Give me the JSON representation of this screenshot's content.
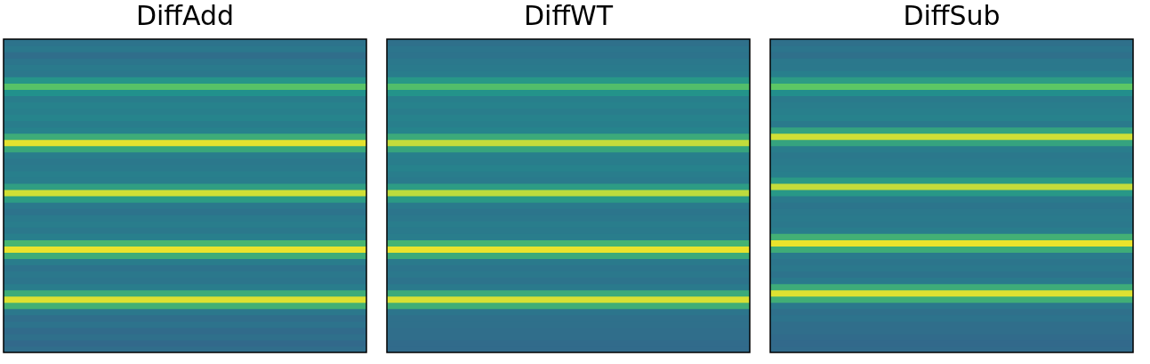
{
  "chart_data": [
    {
      "type": "heatmap",
      "title": "DiffAdd",
      "tick_labels": false,
      "color_range": [
        0,
        1
      ],
      "cells": [
        [
          0.38
        ],
        [
          0.4
        ],
        [
          0.36
        ],
        [
          0.39
        ],
        [
          0.41
        ],
        [
          0.4
        ],
        [
          0.52
        ],
        [
          0.72
        ],
        [
          0.5
        ],
        [
          0.42
        ],
        [
          0.44
        ],
        [
          0.43
        ],
        [
          0.45
        ],
        [
          0.42
        ],
        [
          0.44
        ],
        [
          0.62
        ],
        [
          0.96
        ],
        [
          0.6
        ],
        [
          0.42
        ],
        [
          0.4
        ],
        [
          0.41
        ],
        [
          0.43
        ],
        [
          0.42
        ],
        [
          0.56
        ],
        [
          0.93
        ],
        [
          0.55
        ],
        [
          0.4
        ],
        [
          0.38
        ],
        [
          0.41
        ],
        [
          0.42
        ],
        [
          0.4
        ],
        [
          0.43
        ],
        [
          0.66
        ],
        [
          0.97
        ],
        [
          0.62
        ],
        [
          0.42
        ],
        [
          0.38
        ],
        [
          0.4
        ],
        [
          0.39
        ],
        [
          0.42
        ],
        [
          0.62
        ],
        [
          0.95
        ],
        [
          0.64
        ],
        [
          0.4
        ],
        [
          0.36
        ],
        [
          0.38
        ],
        [
          0.35
        ],
        [
          0.37
        ],
        [
          0.34
        ],
        [
          0.36
        ]
      ]
    },
    {
      "type": "heatmap",
      "title": "DiffWT",
      "tick_labels": false,
      "color_range": [
        0,
        1
      ],
      "cells": [
        [
          0.37
        ],
        [
          0.39
        ],
        [
          0.38
        ],
        [
          0.4
        ],
        [
          0.41
        ],
        [
          0.42
        ],
        [
          0.53
        ],
        [
          0.7
        ],
        [
          0.51
        ],
        [
          0.43
        ],
        [
          0.44
        ],
        [
          0.42
        ],
        [
          0.44
        ],
        [
          0.43
        ],
        [
          0.45
        ],
        [
          0.61
        ],
        [
          0.91
        ],
        [
          0.59
        ],
        [
          0.43
        ],
        [
          0.42
        ],
        [
          0.44
        ],
        [
          0.42
        ],
        [
          0.41
        ],
        [
          0.55
        ],
        [
          0.9
        ],
        [
          0.54
        ],
        [
          0.41
        ],
        [
          0.39
        ],
        [
          0.4
        ],
        [
          0.42
        ],
        [
          0.41
        ],
        [
          0.42
        ],
        [
          0.65
        ],
        [
          0.97
        ],
        [
          0.61
        ],
        [
          0.41
        ],
        [
          0.39
        ],
        [
          0.4
        ],
        [
          0.38
        ],
        [
          0.41
        ],
        [
          0.61
        ],
        [
          0.94
        ],
        [
          0.63
        ],
        [
          0.39
        ],
        [
          0.37
        ],
        [
          0.37
        ],
        [
          0.36
        ],
        [
          0.36
        ],
        [
          0.35
        ],
        [
          0.35
        ]
      ]
    },
    {
      "type": "heatmap",
      "title": "DiffSub",
      "tick_labels": false,
      "color_range": [
        0,
        1
      ],
      "cells": [
        [
          0.37
        ],
        [
          0.39
        ],
        [
          0.37
        ],
        [
          0.4
        ],
        [
          0.4
        ],
        [
          0.43
        ],
        [
          0.55
        ],
        [
          0.74
        ],
        [
          0.49
        ],
        [
          0.41
        ],
        [
          0.42
        ],
        [
          0.43
        ],
        [
          0.44
        ],
        [
          0.41
        ],
        [
          0.58
        ],
        [
          0.93
        ],
        [
          0.58
        ],
        [
          0.42
        ],
        [
          0.4
        ],
        [
          0.41
        ],
        [
          0.42
        ],
        [
          0.43
        ],
        [
          0.54
        ],
        [
          0.91
        ],
        [
          0.53
        ],
        [
          0.41
        ],
        [
          0.39
        ],
        [
          0.4
        ],
        [
          0.41
        ],
        [
          0.4
        ],
        [
          0.42
        ],
        [
          0.64
        ],
        [
          0.97
        ],
        [
          0.62
        ],
        [
          0.41
        ],
        [
          0.39
        ],
        [
          0.4
        ],
        [
          0.38
        ],
        [
          0.41
        ],
        [
          0.62
        ],
        [
          0.95
        ],
        [
          0.63
        ],
        [
          0.4
        ],
        [
          0.37
        ],
        [
          0.38
        ],
        [
          0.36
        ],
        [
          0.36
        ],
        [
          0.35
        ],
        [
          0.34
        ],
        [
          0.35
        ]
      ]
    }
  ]
}
